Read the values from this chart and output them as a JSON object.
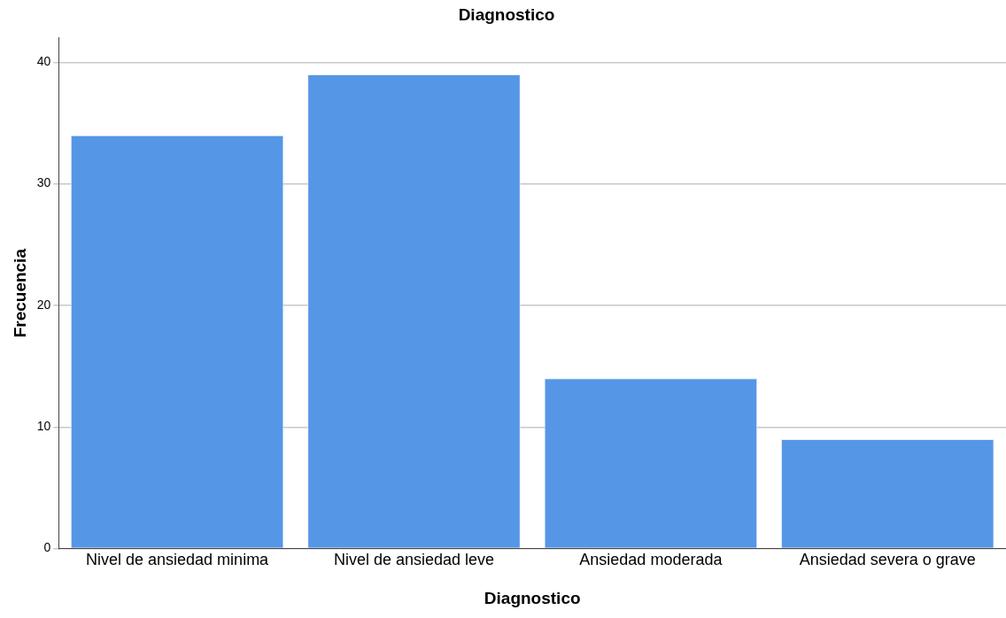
{
  "chart_data": {
    "type": "bar",
    "title": "Diagnostico",
    "xlabel": "Diagnostico",
    "ylabel": "Frecuencia",
    "categories": [
      "Nivel de ansiedad minima",
      "Nivel de ansiedad leve",
      "Ansiedad moderada",
      "Ansiedad severa o grave"
    ],
    "values": [
      34,
      39,
      14,
      9
    ],
    "color": "#5596e6",
    "ylim": [
      0,
      42
    ],
    "yticks": [
      0,
      10,
      20,
      30,
      40
    ],
    "grid": "y",
    "legend": false
  }
}
